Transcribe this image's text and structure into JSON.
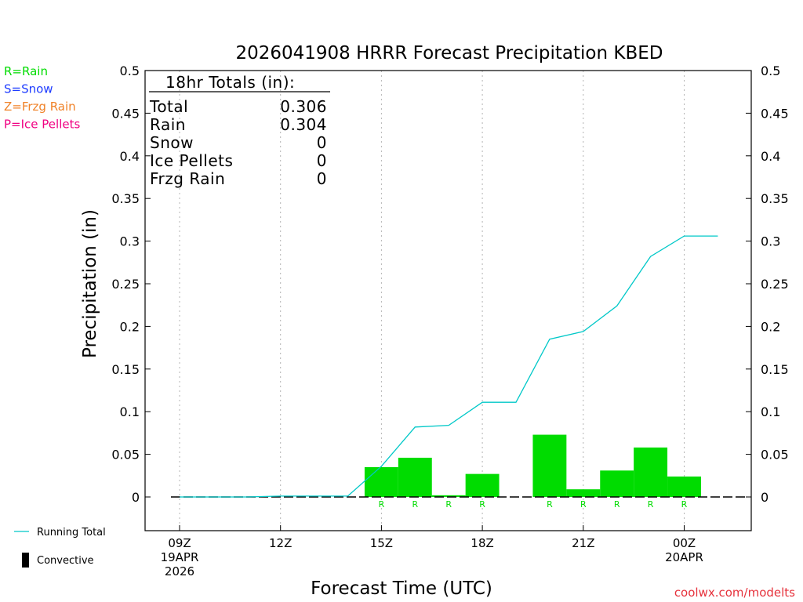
{
  "chart_data": {
    "type": "bar",
    "title": "2026041908 HRRR Forecast Precipitation KBED",
    "xlabel": "Forecast Time (UTC)",
    "ylabel": "Precipitation (in)",
    "ylim": [
      -0.04,
      0.5
    ],
    "y_ticks": [
      "0.5",
      "0.45",
      "0.4",
      "0.35",
      "0.3",
      "0.25",
      "0.2",
      "0.15",
      "0.1",
      "0.05",
      "0"
    ],
    "x_ticks": [
      {
        "hour": 9,
        "lines": [
          "09Z",
          "19APR",
          "2026"
        ]
      },
      {
        "hour": 12,
        "lines": [
          "12Z"
        ]
      },
      {
        "hour": 15,
        "lines": [
          "15Z"
        ]
      },
      {
        "hour": 18,
        "lines": [
          "18Z"
        ]
      },
      {
        "hour": 21,
        "lines": [
          "21Z"
        ]
      },
      {
        "hour": 24,
        "lines": [
          "00Z",
          "20APR"
        ]
      }
    ],
    "grid": "vertical dotted at 3-hour ticks",
    "bars": [
      {
        "start": 14.5,
        "end": 15.5,
        "value": 0.035,
        "ptype": "R"
      },
      {
        "start": 15.5,
        "end": 16.5,
        "value": 0.046,
        "ptype": "R"
      },
      {
        "start": 16.5,
        "end": 17.5,
        "value": 0.002,
        "ptype": "R"
      },
      {
        "start": 17.5,
        "end": 18.5,
        "value": 0.027,
        "ptype": "R"
      },
      {
        "start": 19.5,
        "end": 20.5,
        "value": 0.073,
        "ptype": "R"
      },
      {
        "start": 20.5,
        "end": 21.5,
        "value": 0.009,
        "ptype": "R"
      },
      {
        "start": 21.5,
        "end": 22.5,
        "value": 0.031,
        "ptype": "R"
      },
      {
        "start": 22.5,
        "end": 23.5,
        "value": 0.058,
        "ptype": "R"
      },
      {
        "start": 23.5,
        "end": 24.5,
        "value": 0.024,
        "ptype": "R"
      }
    ],
    "running_total": {
      "name": "Running Total",
      "x": [
        9,
        10,
        11,
        12,
        13,
        14,
        15,
        16,
        17,
        18,
        19,
        20,
        21,
        22,
        23,
        24,
        25
      ],
      "y": [
        0,
        0,
        0,
        0.001,
        0.001,
        0.001,
        0.036,
        0.082,
        0.084,
        0.111,
        0.111,
        0.185,
        0.194,
        0.224,
        0.282,
        0.306,
        0.306
      ]
    },
    "totals_box": {
      "header": "18hr Totals (in):",
      "rows": [
        {
          "label": "Total",
          "value": "0.306"
        },
        {
          "label": "Rain",
          "value": "0.304"
        },
        {
          "label": "Snow",
          "value": "0"
        },
        {
          "label": "Ice Pellets",
          "value": "0"
        },
        {
          "label": "Frzg Rain",
          "value": "0"
        }
      ]
    },
    "ptype_legend": [
      {
        "text": "R=Rain",
        "color": "#00dc00"
      },
      {
        "text": "S=Snow",
        "color": "#1e3cff"
      },
      {
        "text": "Z=Frzg Rain",
        "color": "#f08228"
      },
      {
        "text": "P=Ice Pellets",
        "color": "#f00082"
      }
    ],
    "bottom_legend": [
      {
        "text": "Running Total",
        "color": "#00c8c8",
        "symbol": "line"
      },
      {
        "text": "Convective",
        "color": "#000000",
        "symbol": "bar"
      }
    ],
    "colors": {
      "rain": "#00dc00",
      "running_total": "#00c8c8"
    },
    "credit": "coolwx.com/modelts",
    "credit_color": "#e6323c"
  }
}
